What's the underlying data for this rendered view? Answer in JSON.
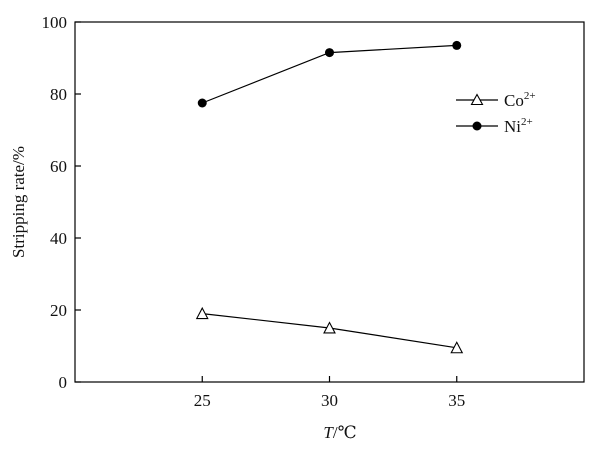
{
  "chart_data": {
    "type": "line",
    "xlabel_var": "T",
    "xlabel_unit": "/℃",
    "ylabel": "Stripping rate/%",
    "x": [
      25,
      30,
      35
    ],
    "xticks": [
      "25",
      "30",
      "35"
    ],
    "xlim": [
      20,
      40
    ],
    "ylim": [
      0,
      100
    ],
    "yticks": [
      "0",
      "20",
      "40",
      "60",
      "80",
      "100"
    ],
    "grid": false,
    "legend_position": "top-right",
    "series": [
      {
        "name_base": "Co",
        "name_sup": "2+",
        "marker": "open-triangle",
        "color": "#000000",
        "values": [
          19.0,
          15.0,
          9.5
        ]
      },
      {
        "name_base": "Ni",
        "name_sup": "2+",
        "marker": "filled-circle",
        "color": "#000000",
        "values": [
          77.5,
          91.5,
          93.5
        ]
      }
    ]
  }
}
